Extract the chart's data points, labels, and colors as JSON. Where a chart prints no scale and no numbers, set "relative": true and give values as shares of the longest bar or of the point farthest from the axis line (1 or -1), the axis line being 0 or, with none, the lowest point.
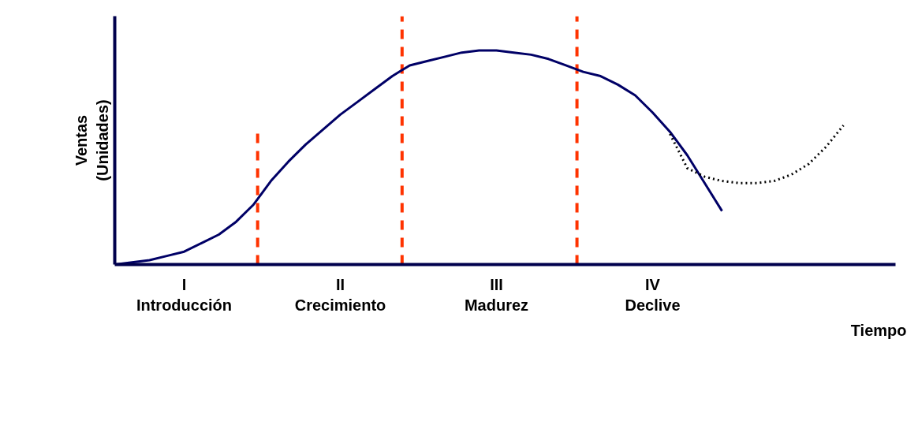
{
  "chart_data": {
    "type": "line",
    "relative": true,
    "xlabel": "Tiempo",
    "ylabel": "Ventas\n(Unidades)",
    "categories": [
      null,
      null,
      null,
      null,
      "I\nIntroducción",
      null,
      null,
      null,
      null,
      null,
      null,
      null,
      null,
      "II\nCrecimiento",
      null,
      null,
      null,
      null,
      null,
      null,
      null,
      null,
      "III\nMadurez",
      null,
      null,
      null,
      null,
      null,
      null,
      null,
      null,
      "IV\nDeclive",
      null,
      null,
      null,
      null,
      null,
      null,
      null,
      null,
      null,
      null,
      null,
      null,
      null,
      null
    ],
    "series": [
      {
        "color": "#000066",
        "line_style": "solid",
        "values": [
          0,
          0.01,
          0.02,
          0.04,
          0.06,
          0.1,
          0.14,
          0.2,
          0.28,
          0.39,
          0.48,
          0.56,
          0.63,
          0.7,
          0.76,
          0.82,
          0.88,
          0.93,
          0.95,
          0.97,
          0.99,
          1,
          1,
          0.99,
          0.98,
          0.96,
          0.93,
          0.9,
          0.88,
          0.84,
          0.79,
          0.71,
          0.62,
          0.51,
          0.38,
          0.25,
          null,
          null,
          null,
          null,
          null,
          null,
          null,
          null,
          null,
          null
        ]
      },
      {
        "color": "#000000",
        "line_style": "dotted",
        "values": [
          null,
          null,
          null,
          null,
          null,
          null,
          null,
          null,
          null,
          null,
          null,
          null,
          null,
          null,
          null,
          null,
          null,
          null,
          null,
          null,
          null,
          null,
          null,
          null,
          null,
          null,
          null,
          null,
          null,
          null,
          null,
          null,
          0.61,
          0.45,
          0.41,
          0.39,
          0.38,
          0.38,
          0.39,
          0.42,
          0.47,
          0.55,
          0.65,
          null,
          null,
          null
        ]
      }
    ],
    "tick_labels": "x"
  }
}
